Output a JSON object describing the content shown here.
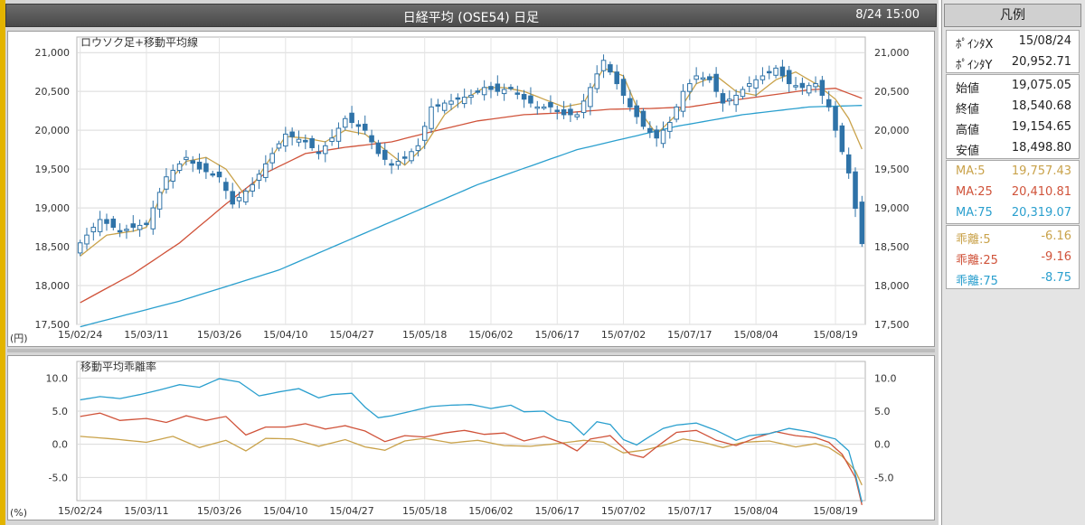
{
  "window": {
    "title": "日経平均 (OSE54) 日足",
    "timestamp": "8/24 15:00"
  },
  "legend": {
    "title": "凡例",
    "pointer": [
      {
        "label": "ﾎﾟｲﾝﾀX",
        "value": "15/08/24"
      },
      {
        "label": "ﾎﾟｲﾝﾀY",
        "value": "20,952.71"
      }
    ],
    "ohlc": [
      {
        "label": "始値",
        "value": "19,075.05"
      },
      {
        "label": "終値",
        "value": "18,540.68"
      },
      {
        "label": "高値",
        "value": "19,154.65"
      },
      {
        "label": "安値",
        "value": "18,498.80"
      }
    ],
    "ma": [
      {
        "label": "MA:5",
        "value": "19,757.43",
        "color": "#c9a24a"
      },
      {
        "label": "MA:25",
        "value": "20,410.81",
        "color": "#d0533a"
      },
      {
        "label": "MA:75",
        "value": "20,319.07",
        "color": "#2a9fce"
      }
    ],
    "deviation": [
      {
        "label": "乖離:5",
        "value": "-6.16",
        "color": "#c9a24a"
      },
      {
        "label": "乖離:25",
        "value": "-9.16",
        "color": "#d0533a"
      },
      {
        "label": "乖離:75",
        "value": "-8.75",
        "color": "#2a9fce"
      }
    ]
  },
  "chart_data": [
    {
      "type": "candlestick",
      "title": "ロウソク足+移動平均線",
      "ylabel": "(円)",
      "ylim": [
        17500,
        21200
      ],
      "yticks": [
        "17,500",
        "18,000",
        "18,500",
        "19,000",
        "19,500",
        "20,000",
        "20,500",
        "21,000"
      ],
      "ytick_values": [
        17500,
        18000,
        18500,
        19000,
        19500,
        20000,
        20500,
        21000
      ],
      "xtick_labels": [
        "15/02/24",
        "15/03/11",
        "15/03/26",
        "15/04/10",
        "15/04/27",
        "15/05/18",
        "15/06/02",
        "15/06/17",
        "15/07/02",
        "15/07/17",
        "15/08/04",
        "15/08/19"
      ],
      "xtick_index": [
        0,
        10,
        21,
        31,
        41,
        52,
        62,
        72,
        82,
        92,
        102,
        114
      ],
      "n": 119,
      "colors": {
        "up": "#ffffff",
        "down": "#2f73a8",
        "edge": "#2f73a8",
        "ma5": "#c9a24a",
        "ma25": "#d0533a",
        "ma75": "#2a9fce"
      },
      "series": [
        {
          "name": "MA:5",
          "color": "#c9a24a"
        },
        {
          "name": "MA:25",
          "color": "#d0533a"
        },
        {
          "name": "MA:75",
          "color": "#2a9fce"
        }
      ],
      "anchors": {
        "close": [
          [
            0,
            18550
          ],
          [
            3,
            18850
          ],
          [
            6,
            18700
          ],
          [
            10,
            18800
          ],
          [
            13,
            19400
          ],
          [
            16,
            19650
          ],
          [
            18,
            19500
          ],
          [
            21,
            19400
          ],
          [
            23,
            19050
          ],
          [
            26,
            19300
          ],
          [
            29,
            19700
          ],
          [
            31,
            19950
          ],
          [
            34,
            19850
          ],
          [
            36,
            19700
          ],
          [
            38,
            19900
          ],
          [
            40,
            20150
          ],
          [
            43,
            20000
          ],
          [
            45,
            19700
          ],
          [
            47,
            19550
          ],
          [
            49,
            19650
          ],
          [
            51,
            19800
          ],
          [
            53,
            20300
          ],
          [
            55,
            20350
          ],
          [
            57,
            20400
          ],
          [
            59,
            20450
          ],
          [
            61,
            20550
          ],
          [
            63,
            20500
          ],
          [
            65,
            20550
          ],
          [
            67,
            20400
          ],
          [
            69,
            20300
          ],
          [
            71,
            20300
          ],
          [
            73,
            20200
          ],
          [
            75,
            20200
          ],
          [
            77,
            20550
          ],
          [
            79,
            20900
          ],
          [
            81,
            20600
          ],
          [
            83,
            20300
          ],
          [
            85,
            20050
          ],
          [
            87,
            19900
          ],
          [
            89,
            20100
          ],
          [
            91,
            20500
          ],
          [
            93,
            20700
          ],
          [
            95,
            20650
          ],
          [
            97,
            20350
          ],
          [
            99,
            20450
          ],
          [
            101,
            20600
          ],
          [
            103,
            20700
          ],
          [
            105,
            20800
          ],
          [
            107,
            20600
          ],
          [
            109,
            20550
          ],
          [
            111,
            20600
          ],
          [
            113,
            20300
          ],
          [
            114,
            20000
          ],
          [
            116,
            19450
          ],
          [
            118,
            18540
          ]
        ],
        "ma5": [
          [
            0,
            18380
          ],
          [
            4,
            18650
          ],
          [
            8,
            18700
          ],
          [
            10,
            18750
          ],
          [
            13,
            19300
          ],
          [
            16,
            19600
          ],
          [
            19,
            19650
          ],
          [
            22,
            19500
          ],
          [
            25,
            19150
          ],
          [
            28,
            19550
          ],
          [
            31,
            19920
          ],
          [
            34,
            19900
          ],
          [
            37,
            19850
          ],
          [
            40,
            20000
          ],
          [
            43,
            19950
          ],
          [
            46,
            19750
          ],
          [
            49,
            19550
          ],
          [
            52,
            19800
          ],
          [
            55,
            20200
          ],
          [
            58,
            20400
          ],
          [
            61,
            20550
          ],
          [
            64,
            20550
          ],
          [
            67,
            20500
          ],
          [
            70,
            20400
          ],
          [
            73,
            20300
          ],
          [
            76,
            20350
          ],
          [
            79,
            20800
          ],
          [
            82,
            20700
          ],
          [
            84,
            20300
          ],
          [
            87,
            19950
          ],
          [
            90,
            20200
          ],
          [
            93,
            20600
          ],
          [
            96,
            20700
          ],
          [
            99,
            20500
          ],
          [
            102,
            20450
          ],
          [
            105,
            20650
          ],
          [
            108,
            20750
          ],
          [
            111,
            20600
          ],
          [
            114,
            20400
          ],
          [
            116,
            20150
          ],
          [
            118,
            19757
          ]
        ],
        "ma25": [
          [
            0,
            17780
          ],
          [
            8,
            18150
          ],
          [
            15,
            18550
          ],
          [
            22,
            19050
          ],
          [
            28,
            19450
          ],
          [
            34,
            19700
          ],
          [
            40,
            19780
          ],
          [
            47,
            19850
          ],
          [
            53,
            19980
          ],
          [
            60,
            20120
          ],
          [
            67,
            20200
          ],
          [
            74,
            20230
          ],
          [
            80,
            20270
          ],
          [
            86,
            20280
          ],
          [
            92,
            20300
          ],
          [
            98,
            20380
          ],
          [
            104,
            20450
          ],
          [
            110,
            20520
          ],
          [
            114,
            20540
          ],
          [
            118,
            20411
          ]
        ],
        "ma75": [
          [
            0,
            17470
          ],
          [
            15,
            17800
          ],
          [
            30,
            18200
          ],
          [
            45,
            18750
          ],
          [
            60,
            19300
          ],
          [
            75,
            19750
          ],
          [
            90,
            20050
          ],
          [
            100,
            20200
          ],
          [
            110,
            20300
          ],
          [
            118,
            20319
          ]
        ]
      }
    },
    {
      "type": "line",
      "title": "移動平均乖離率",
      "ylabel": "(%)",
      "ylim": [
        -8.5,
        12.5
      ],
      "yticks": [
        "10.0",
        "5.0",
        "0.0",
        "-5.0"
      ],
      "ytick_values": [
        10,
        5,
        0,
        -5
      ],
      "xtick_labels": [
        "15/02/24",
        "15/03/11",
        "15/03/26",
        "15/04/10",
        "15/04/27",
        "15/05/18",
        "15/06/02",
        "15/06/17",
        "15/07/02",
        "15/07/17",
        "15/08/04",
        "15/08/19"
      ],
      "xtick_index": [
        0,
        10,
        21,
        31,
        41,
        52,
        62,
        72,
        82,
        92,
        102,
        114
      ],
      "n": 119,
      "series": [
        {
          "name": "乖離:5",
          "color": "#c9a24a",
          "anchors": [
            [
              0,
              1.2
            ],
            [
              5,
              0.8
            ],
            [
              10,
              0.3
            ],
            [
              14,
              1.2
            ],
            [
              18,
              -0.5
            ],
            [
              22,
              0.6
            ],
            [
              25,
              -1.0
            ],
            [
              28,
              0.9
            ],
            [
              32,
              0.8
            ],
            [
              36,
              -0.3
            ],
            [
              40,
              0.7
            ],
            [
              43,
              -0.4
            ],
            [
              46,
              -0.9
            ],
            [
              49,
              0.5
            ],
            [
              52,
              0.9
            ],
            [
              56,
              0.2
            ],
            [
              60,
              0.6
            ],
            [
              64,
              -0.2
            ],
            [
              68,
              -0.3
            ],
            [
              72,
              0.1
            ],
            [
              76,
              0.6
            ],
            [
              79,
              0.3
            ],
            [
              82,
              -1.3
            ],
            [
              85,
              -0.9
            ],
            [
              88,
              -0.2
            ],
            [
              91,
              0.8
            ],
            [
              94,
              0.3
            ],
            [
              97,
              -0.5
            ],
            [
              100,
              0.3
            ],
            [
              104,
              0.5
            ],
            [
              108,
              -0.4
            ],
            [
              111,
              0.1
            ],
            [
              113,
              -0.5
            ],
            [
              115,
              -1.8
            ],
            [
              117,
              -4.0
            ],
            [
              118,
              -6.16
            ]
          ]
        },
        {
          "name": "乖離:25",
          "color": "#d0533a",
          "anchors": [
            [
              0,
              4.2
            ],
            [
              3,
              4.7
            ],
            [
              6,
              3.6
            ],
            [
              10,
              3.9
            ],
            [
              13,
              3.3
            ],
            [
              16,
              4.3
            ],
            [
              19,
              3.6
            ],
            [
              22,
              4.2
            ],
            [
              25,
              1.4
            ],
            [
              28,
              2.6
            ],
            [
              31,
              2.6
            ],
            [
              34,
              3.1
            ],
            [
              37,
              2.3
            ],
            [
              40,
              2.8
            ],
            [
              43,
              2.0
            ],
            [
              46,
              0.4
            ],
            [
              49,
              1.3
            ],
            [
              52,
              1.1
            ],
            [
              55,
              1.7
            ],
            [
              58,
              2.1
            ],
            [
              61,
              1.5
            ],
            [
              64,
              1.7
            ],
            [
              67,
              0.5
            ],
            [
              70,
              1.2
            ],
            [
              73,
              0.1
            ],
            [
              75,
              -1.0
            ],
            [
              77,
              0.8
            ],
            [
              80,
              1.3
            ],
            [
              83,
              -1.5
            ],
            [
              85,
              -2.0
            ],
            [
              87,
              -0.4
            ],
            [
              90,
              1.8
            ],
            [
              93,
              2.1
            ],
            [
              96,
              0.6
            ],
            [
              99,
              -0.2
            ],
            [
              102,
              1.0
            ],
            [
              105,
              1.9
            ],
            [
              108,
              1.3
            ],
            [
              111,
              1.0
            ],
            [
              113,
              0.3
            ],
            [
              115,
              -1.5
            ],
            [
              117,
              -5.0
            ],
            [
              118,
              -9.16
            ]
          ]
        },
        {
          "name": "乖離:75",
          "color": "#2a9fce",
          "anchors": [
            [
              0,
              6.7
            ],
            [
              3,
              7.2
            ],
            [
              6,
              6.9
            ],
            [
              9,
              7.5
            ],
            [
              12,
              8.2
            ],
            [
              15,
              9.0
            ],
            [
              18,
              8.6
            ],
            [
              21,
              9.9
            ],
            [
              24,
              9.4
            ],
            [
              27,
              7.3
            ],
            [
              30,
              7.9
            ],
            [
              33,
              8.4
            ],
            [
              36,
              7.0
            ],
            [
              38,
              7.5
            ],
            [
              41,
              7.7
            ],
            [
              43,
              5.6
            ],
            [
              45,
              4.0
            ],
            [
              47,
              4.3
            ],
            [
              50,
              5.0
            ],
            [
              53,
              5.7
            ],
            [
              56,
              5.9
            ],
            [
              59,
              6.0
            ],
            [
              62,
              5.4
            ],
            [
              65,
              5.9
            ],
            [
              67,
              4.9
            ],
            [
              70,
              5.0
            ],
            [
              72,
              3.7
            ],
            [
              74,
              3.3
            ],
            [
              76,
              1.4
            ],
            [
              78,
              3.4
            ],
            [
              80,
              3.0
            ],
            [
              82,
              0.7
            ],
            [
              84,
              -0.1
            ],
            [
              86,
              1.2
            ],
            [
              88,
              2.4
            ],
            [
              90,
              2.9
            ],
            [
              93,
              3.2
            ],
            [
              96,
              2.1
            ],
            [
              99,
              0.6
            ],
            [
              101,
              1.3
            ],
            [
              104,
              1.6
            ],
            [
              107,
              2.4
            ],
            [
              110,
              1.9
            ],
            [
              112,
              1.3
            ],
            [
              114,
              0.8
            ],
            [
              116,
              -1.0
            ],
            [
              117,
              -4.5
            ],
            [
              118,
              -8.75
            ]
          ]
        }
      ]
    }
  ]
}
